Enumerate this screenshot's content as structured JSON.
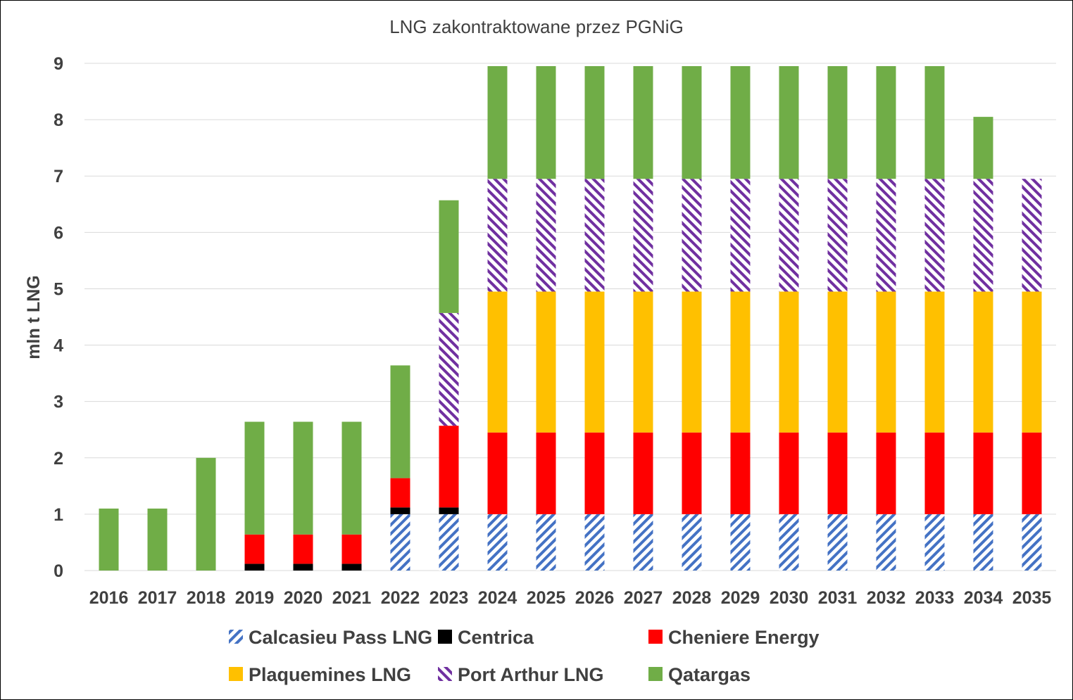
{
  "chart_data": {
    "type": "bar",
    "stacked": true,
    "title": "LNG zakontraktowane przez PGNiG",
    "xlabel": "",
    "ylabel": "mln t LNG",
    "ylim": [
      0,
      9
    ],
    "yticks": [
      0,
      1,
      2,
      3,
      4,
      5,
      6,
      7,
      8,
      9
    ],
    "grid": "horizontal",
    "legend_position": "bottom",
    "categories": [
      "2016",
      "2017",
      "2018",
      "2019",
      "2020",
      "2021",
      "2022",
      "2023",
      "2024",
      "2025",
      "2026",
      "2027",
      "2028",
      "2029",
      "2030",
      "2031",
      "2032",
      "2033",
      "2034",
      "2035"
    ],
    "series": [
      {
        "name": "Calcasieu Pass LNG",
        "color": "#4472C4",
        "pattern": "diagonal-hatch",
        "values": [
          0,
          0,
          0,
          0,
          0,
          0,
          1,
          1,
          1,
          1,
          1,
          1,
          1,
          1,
          1,
          1,
          1,
          1,
          1,
          1
        ]
      },
      {
        "name": "Centrica",
        "color": "#000000",
        "pattern": "solid",
        "values": [
          0,
          0,
          0,
          0.12,
          0.12,
          0.12,
          0.12,
          0.12,
          0,
          0,
          0,
          0,
          0,
          0,
          0,
          0,
          0,
          0,
          0,
          0
        ]
      },
      {
        "name": "Cheniere Energy",
        "color": "#FF0000",
        "pattern": "solid",
        "values": [
          0,
          0,
          0,
          0.52,
          0.52,
          0.52,
          0.52,
          1.45,
          1.45,
          1.45,
          1.45,
          1.45,
          1.45,
          1.45,
          1.45,
          1.45,
          1.45,
          1.45,
          1.45,
          1.45
        ]
      },
      {
        "name": "Plaquemines LNG",
        "color": "#FFC000",
        "pattern": "solid",
        "values": [
          0,
          0,
          0,
          0,
          0,
          0,
          0,
          0,
          2.5,
          2.5,
          2.5,
          2.5,
          2.5,
          2.5,
          2.5,
          2.5,
          2.5,
          2.5,
          2.5,
          2.5
        ]
      },
      {
        "name": "Port Arthur LNG",
        "color": "#7030A0",
        "pattern": "diagonal-hatch",
        "values": [
          0,
          0,
          0,
          0,
          0,
          0,
          0,
          2,
          2,
          2,
          2,
          2,
          2,
          2,
          2,
          2,
          2,
          2,
          2,
          2
        ]
      },
      {
        "name": "Qatargas",
        "color": "#70AD47",
        "pattern": "solid",
        "values": [
          1.1,
          1.1,
          2,
          2,
          2,
          2,
          2,
          2,
          2,
          2,
          2,
          2,
          2,
          2,
          2,
          2,
          2,
          2,
          1.1,
          0
        ]
      }
    ]
  }
}
